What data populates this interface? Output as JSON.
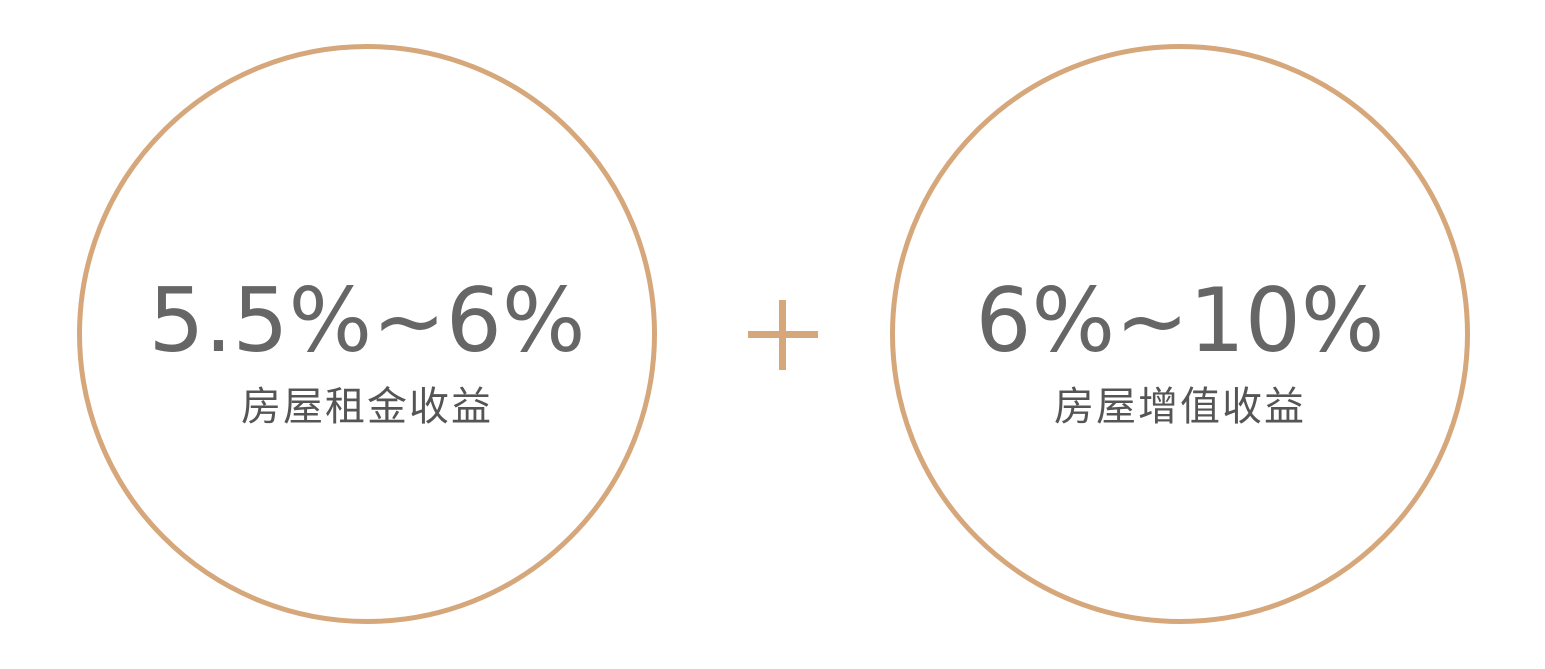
{
  "colors": {
    "accent": "#d5a77a",
    "rate_text": "#666666",
    "label_text": "#555555"
  },
  "left_card": {
    "rate": "5.5%~6%",
    "label": "房屋租金收益"
  },
  "operator": {
    "symbol": "+",
    "icon": "plus-icon"
  },
  "right_card": {
    "rate": "6%~10%",
    "label": "房屋增值收益"
  }
}
